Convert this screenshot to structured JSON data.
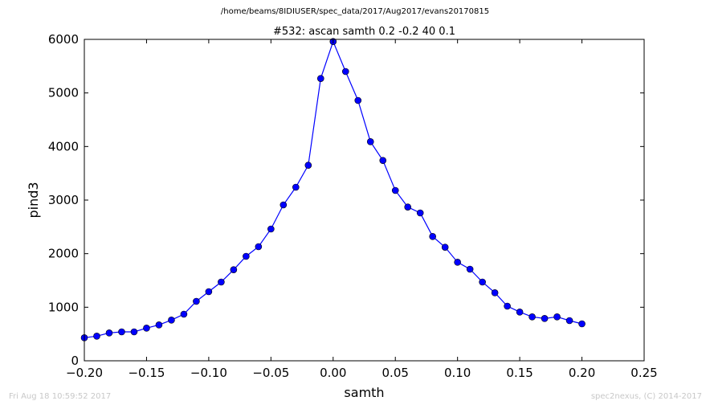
{
  "figure": {
    "suptitle": "/home/beams/8IDIUSER/spec_data/2017/Aug2017/evans20170815",
    "footer_left": "Fri Aug 18 10:59:52 2017",
    "footer_right": "spec2nexus, (C) 2014-2017"
  },
  "chart_data": {
    "type": "line",
    "title": "#532: ascan  samth 0.2 -0.2  40 0.1",
    "xlabel": "samth",
    "ylabel": "pind3",
    "xlim": [
      -0.2,
      0.25
    ],
    "ylim": [
      0,
      6000
    ],
    "xticks": [
      -0.2,
      -0.15,
      -0.1,
      -0.05,
      0.0,
      0.05,
      0.1,
      0.15,
      0.2,
      0.25
    ],
    "xtick_labels": [
      "−0.20",
      "−0.15",
      "−0.10",
      "−0.05",
      "0.00",
      "0.05",
      "0.10",
      "0.15",
      "0.20",
      "0.25"
    ],
    "yticks": [
      0,
      1000,
      2000,
      3000,
      4000,
      5000,
      6000
    ],
    "ytick_labels": [
      "0",
      "1000",
      "2000",
      "3000",
      "4000",
      "5000",
      "6000"
    ],
    "grid": false,
    "colors": {
      "series": "#0000ff"
    },
    "series": [
      {
        "marker": "circle",
        "x": [
          -0.2,
          -0.19,
          -0.18,
          -0.17,
          -0.16,
          -0.15,
          -0.14,
          -0.13,
          -0.12,
          -0.11,
          -0.1,
          -0.09,
          -0.08,
          -0.07,
          -0.06,
          -0.05,
          -0.04,
          -0.03,
          -0.02,
          -0.01,
          0.0,
          0.01,
          0.02,
          0.03,
          0.04,
          0.05,
          0.06,
          0.07,
          0.08,
          0.09,
          0.1,
          0.11,
          0.12,
          0.13,
          0.14,
          0.15,
          0.16,
          0.17,
          0.18,
          0.19,
          0.2
        ],
        "y": [
          430,
          460,
          520,
          540,
          540,
          610,
          670,
          760,
          870,
          1110,
          1290,
          1470,
          1700,
          1950,
          2130,
          2460,
          2910,
          3240,
          3650,
          5270,
          5960,
          5400,
          4860,
          4090,
          3740,
          3180,
          2870,
          2760,
          2320,
          2120,
          1840,
          1710,
          1470,
          1270,
          1020,
          910,
          820,
          790,
          820,
          750,
          690
        ]
      }
    ]
  }
}
